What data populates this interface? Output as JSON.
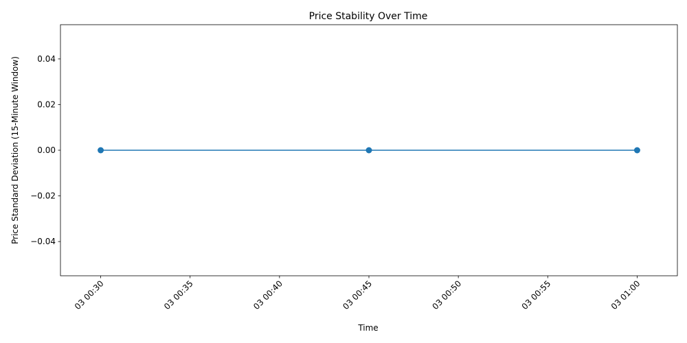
{
  "chart_data": {
    "type": "line",
    "title": "Price Stability Over Time",
    "xlabel": "Time",
    "ylabel": "Price Standard Deviation (15-Minute Window)",
    "x": [
      "03 00:30",
      "03 00:45",
      "03 01:00"
    ],
    "x_minutes": [
      30,
      45,
      60
    ],
    "series": [
      {
        "values": [
          0.0,
          0.0,
          0.0
        ],
        "color": "#1f77b4",
        "marker": "circle"
      }
    ],
    "xticks": [
      "03 00:30",
      "03 00:35",
      "03 00:40",
      "03 00:45",
      "03 00:50",
      "03 00:55",
      "03 01:00"
    ],
    "xtick_minutes": [
      30,
      35,
      40,
      45,
      50,
      55,
      60
    ],
    "xtick_rotation": 45,
    "yticks": [
      -0.04,
      -0.02,
      0.0,
      0.02,
      0.04
    ],
    "ytick_labels": [
      "−0.04",
      "−0.02",
      "0.00",
      "0.02",
      "0.04"
    ],
    "xlim": [
      27.75,
      62.25
    ],
    "ylim": [
      -0.055,
      0.055
    ],
    "grid": false,
    "legend": "none"
  }
}
